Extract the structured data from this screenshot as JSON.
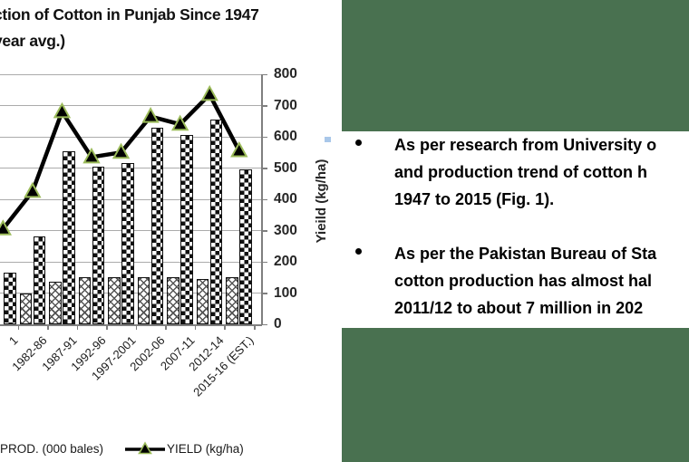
{
  "chart": {
    "title_line1": "ction of Cotton in Punjab Since 1947",
    "title_line2": "year avg.)",
    "legend_prod": "PROD. (000 bales)",
    "legend_yield": "YIELD (kg/ha)"
  },
  "chart_data": {
    "type": "bar",
    "subtype": "combo bar + line, left edge of chart clipped by screenshot",
    "categories": [
      "1",
      "1982-86",
      "1987-91",
      "1992-96",
      "1997-2001",
      "2002-06",
      "2007-11",
      "2012-14",
      "2015-16 (EST.)"
    ],
    "series": [
      {
        "name": "",
        "type": "bar",
        "pattern": "crosshatch",
        "values": [
          null,
          100,
          135,
          150,
          150,
          150,
          150,
          145,
          150
        ]
      },
      {
        "name": "PROD. (000 bales)",
        "type": "bar",
        "pattern": "checker",
        "values": [
          165,
          280,
          555,
          505,
          515,
          630,
          605,
          655,
          495
        ]
      },
      {
        "name": "YIELD (kg/ha)",
        "type": "line",
        "marker": "triangle",
        "values": [
          305,
          425,
          680,
          535,
          550,
          665,
          640,
          735,
          555
        ]
      }
    ],
    "title": "ction of Cotton in Punjab Since 1947 (year avg.)",
    "xlabel": "",
    "ylabel": "Yieild (kg/ha)",
    "ylim": [
      0,
      800
    ],
    "y_ticks": [
      800,
      700,
      600,
      500,
      400,
      300,
      200,
      100,
      0
    ],
    "grid": true,
    "legend_position": "bottom"
  },
  "panel": {
    "bullets": [
      {
        "lines": [
          "As per research from University o",
          "and production trend of cotton h",
          "1947 to 2015 (Fig. 1)."
        ]
      },
      {
        "lines": [
          "As per the Pakistan Bureau of Sta",
          "cotton production has almost hal",
          "2011/12 to about 7 million in 202"
        ]
      }
    ]
  },
  "colors": {
    "green_panel": "#497150",
    "marker_outline": "#9bbb59",
    "gridline": "#ababab",
    "axis": "#7f7f7f",
    "text": "#000000"
  }
}
